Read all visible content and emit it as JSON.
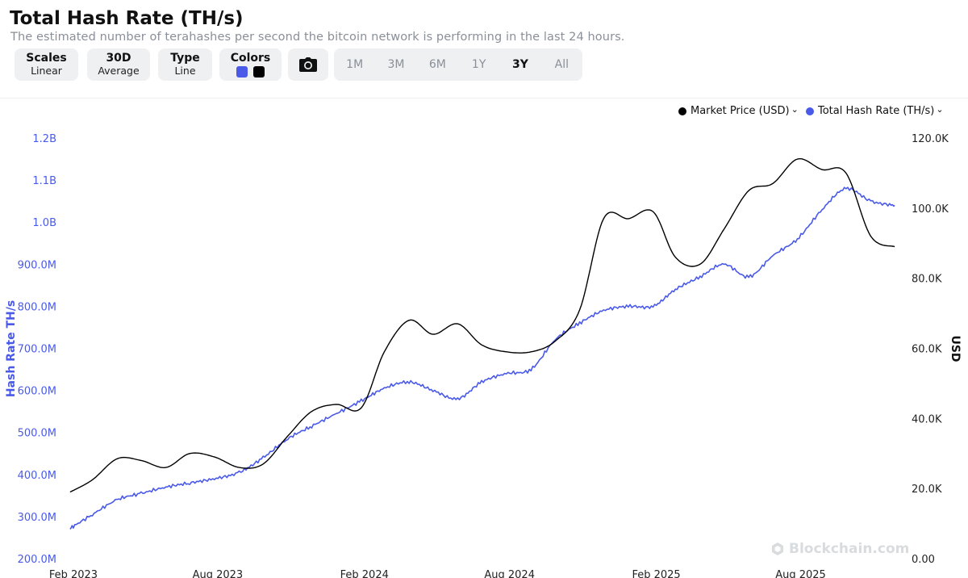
{
  "header": {
    "title": "Total Hash Rate (TH/s)",
    "subtitle": "The estimated number of terahashes per second the bitcoin network is performing in the last 24 hours."
  },
  "controls": {
    "scales": {
      "label": "Scales",
      "value": "Linear"
    },
    "average": {
      "label": "30D",
      "value": "Average"
    },
    "type": {
      "label": "Type",
      "value": "Line"
    },
    "colors": {
      "label": "Colors",
      "swatch1": "#4a5ae8",
      "swatch2": "#000000"
    },
    "screenshot_icon": "camera-icon",
    "ranges": [
      "1M",
      "3M",
      "6M",
      "1Y",
      "3Y",
      "All"
    ],
    "active_range": "3Y"
  },
  "legend": {
    "price": "Market Price (USD)",
    "hash": "Total Hash Rate (TH/s)"
  },
  "watermark": "Blockchain.com",
  "chart_data": {
    "type": "line",
    "x_ticks": [
      "Feb 2023",
      "Aug 2023",
      "Feb 2024",
      "Aug 2024",
      "Feb 2025",
      "Aug 2025"
    ],
    "left_axis": {
      "label": "Hash Rate TH/s",
      "ticks": [
        "200.0M",
        "300.0M",
        "400.0M",
        "500.0M",
        "600.0M",
        "700.0M",
        "800.0M",
        "900.0M",
        "1.0B",
        "1.1B",
        "1.2B"
      ],
      "ylim": [
        200000000,
        1200000000
      ]
    },
    "right_axis": {
      "label": "USD",
      "ticks": [
        "0.00",
        "20.0K",
        "40.0K",
        "60.0K",
        "80.0K",
        "100.0K",
        "120.0K"
      ],
      "ylim": [
        0,
        120000
      ]
    },
    "series": [
      {
        "name": "Total Hash Rate (TH/s)",
        "color": "#4a5ae8",
        "axis": "left",
        "x": [
          "2023-02-01",
          "2023-03-01",
          "2023-04-01",
          "2023-05-01",
          "2023-06-01",
          "2023-07-01",
          "2023-08-01",
          "2023-09-01",
          "2023-10-01",
          "2023-11-01",
          "2023-12-01",
          "2024-01-01",
          "2024-02-01",
          "2024-03-01",
          "2024-04-01",
          "2024-05-01",
          "2024-06-01",
          "2024-07-01",
          "2024-08-01",
          "2024-09-01",
          "2024-10-01",
          "2024-11-01",
          "2024-12-01",
          "2025-01-01",
          "2025-02-01",
          "2025-03-01",
          "2025-04-01",
          "2025-05-01",
          "2025-06-01",
          "2025-07-01",
          "2025-08-01",
          "2025-09-01",
          "2025-10-01",
          "2025-11-01",
          "2025-12-01"
        ],
        "values": [
          272000000,
          305000000,
          340000000,
          355000000,
          370000000,
          380000000,
          390000000,
          405000000,
          440000000,
          485000000,
          515000000,
          545000000,
          575000000,
          605000000,
          620000000,
          600000000,
          580000000,
          620000000,
          640000000,
          650000000,
          720000000,
          760000000,
          790000000,
          800000000,
          800000000,
          840000000,
          870000000,
          900000000,
          870000000,
          920000000,
          960000000,
          1030000000,
          1080000000,
          1050000000,
          1040000000
        ]
      },
      {
        "name": "Market Price (USD)",
        "color": "#000000",
        "axis": "right",
        "x": [
          "2023-02-01",
          "2023-03-01",
          "2023-04-01",
          "2023-05-01",
          "2023-06-01",
          "2023-07-01",
          "2023-08-01",
          "2023-09-01",
          "2023-10-01",
          "2023-11-01",
          "2023-12-01",
          "2024-01-01",
          "2024-02-01",
          "2024-03-01",
          "2024-04-01",
          "2024-05-01",
          "2024-06-01",
          "2024-07-01",
          "2024-08-01",
          "2024-09-01",
          "2024-10-01",
          "2024-11-01",
          "2024-12-01",
          "2025-01-01",
          "2025-02-01",
          "2025-03-01",
          "2025-04-01",
          "2025-05-01",
          "2025-06-01",
          "2025-07-01",
          "2025-08-01",
          "2025-09-01",
          "2025-10-01",
          "2025-11-01",
          "2025-12-01"
        ],
        "values": [
          19000,
          22500,
          28500,
          28000,
          26000,
          30000,
          29000,
          26000,
          27000,
          35000,
          42000,
          44000,
          43000,
          59000,
          68000,
          64000,
          67000,
          61000,
          59000,
          59000,
          62000,
          71000,
          97000,
          97000,
          99000,
          86000,
          84000,
          94000,
          105000,
          107000,
          114000,
          111000,
          110000,
          92000,
          89000
        ]
      }
    ]
  }
}
